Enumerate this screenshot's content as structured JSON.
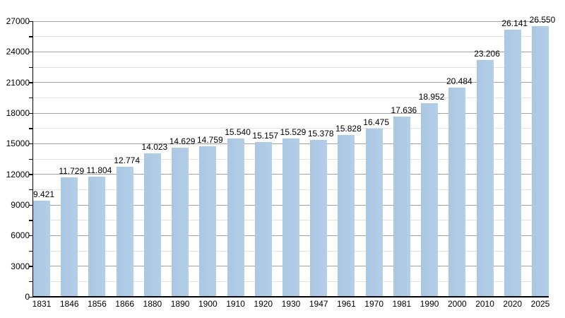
{
  "chart_data": {
    "type": "bar",
    "title": "",
    "xlabel": "",
    "ylabel": "",
    "categories": [
      "1831",
      "1846",
      "1856",
      "1866",
      "1880",
      "1890",
      "1900",
      "1910",
      "1920",
      "1930",
      "1947",
      "1961",
      "1970",
      "1981",
      "1990",
      "2000",
      "2010",
      "2020",
      "2025"
    ],
    "values": [
      9421,
      11729,
      11804,
      12774,
      14023,
      14629,
      14759,
      15540,
      15157,
      15529,
      15378,
      15828,
      16475,
      17636,
      18952,
      20484,
      23206,
      26141,
      26550
    ],
    "value_labels": [
      "9.421",
      "11.729",
      "11.804",
      "12.774",
      "14.023",
      "14.629",
      "14.759",
      "15.540",
      "15.157",
      "15.529",
      "15.378",
      "15.828",
      "16.475",
      "17.636",
      "18.952",
      "20.484",
      "23.206",
      "26.141",
      "26.550"
    ],
    "yticks": [
      "27000",
      "24000",
      "21000",
      "18000",
      "15000",
      "12000",
      "9000",
      "6000",
      "3000",
      "0"
    ],
    "ylim": [
      0,
      27000
    ],
    "ytick_step": 3000,
    "minor_grid_step": 1500,
    "grid": "horizontal, major and minor lines",
    "legend": false,
    "colors": {
      "bar": "#b0cbe4",
      "major_grid": "#a2a2a2",
      "minor_grid": "#e2e2e2",
      "axis": "#000000",
      "text": "#000000",
      "background": "#ffffff"
    }
  }
}
